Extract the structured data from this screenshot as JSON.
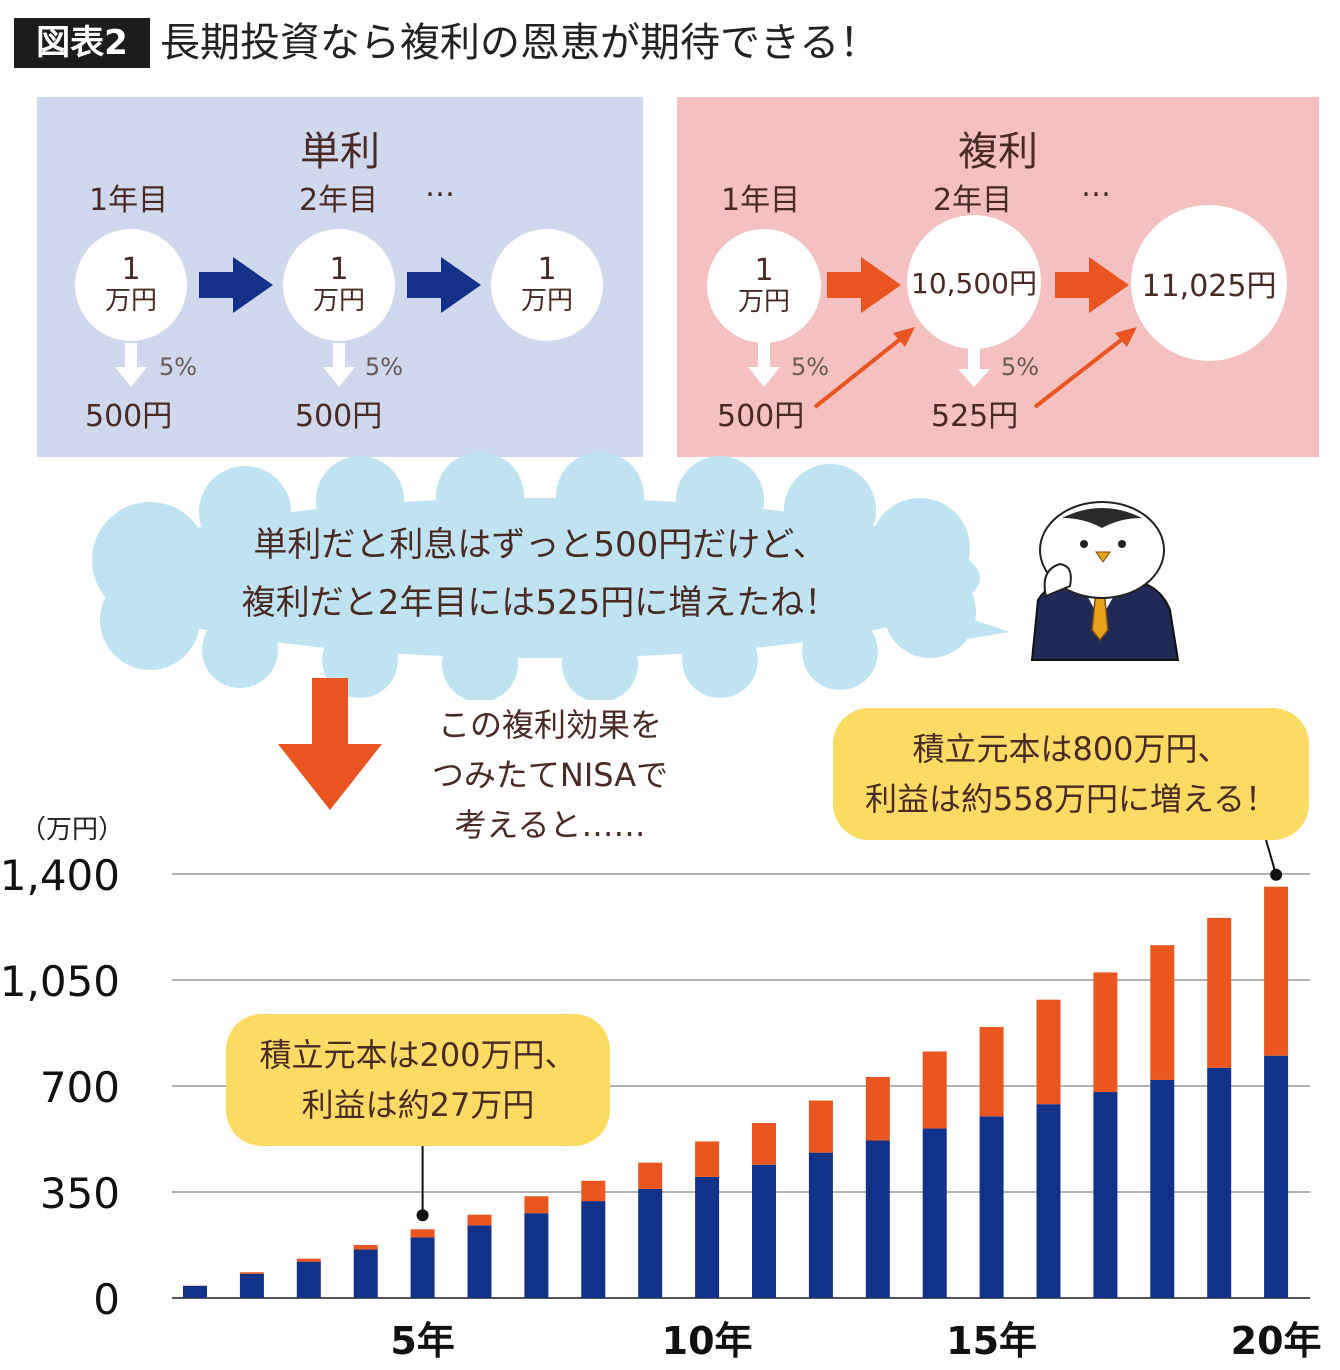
{
  "title": {
    "tag": "図表2",
    "text": "長期投資なら複利の恩恵が期待できる！"
  },
  "simple_panel": {
    "heading": "単利",
    "year1": "1年目",
    "year2": "2年目",
    "ellipsis": "…",
    "circle_num": "1",
    "circle_unit": "万円",
    "rate": "5%",
    "interest": "500円"
  },
  "compound_panel": {
    "heading": "複利",
    "year1": "1年目",
    "year2": "2年目",
    "ellipsis": "…",
    "circle1_num": "1",
    "circle1_unit": "万円",
    "circle2": "10,500円",
    "circle3": "11,025円",
    "rate": "5%",
    "interest1": "500円",
    "interest2": "525円"
  },
  "bubble": {
    "line1": "単利だと利息はずっと500円だけど、",
    "line2": "複利だと2年目には525円に増えたね！"
  },
  "note": {
    "line1": "この複利効果を",
    "line2": "つみたてNISAで",
    "line3": "考えると……"
  },
  "colors": {
    "principal": "#12328a",
    "profit": "#e9561f",
    "simple_arrow": "#14318a",
    "compound_arrow": "#e95420",
    "callout": "#fbdb63",
    "bubble": "#bfe3f0"
  },
  "chart_data": {
    "type": "bar",
    "stacked": true,
    "unit_label": "（万円）",
    "yticks": [
      "0",
      "350",
      "700",
      "1,050",
      "1,400"
    ],
    "ylim": [
      0,
      1400
    ],
    "x_labels": {
      "5": "5年",
      "10": "10年",
      "15": "15年",
      "20": "20年"
    },
    "grid": true,
    "x": [
      1,
      2,
      3,
      4,
      5,
      6,
      7,
      8,
      9,
      10,
      11,
      12,
      13,
      14,
      15,
      16,
      17,
      18,
      19,
      20
    ],
    "series": [
      {
        "values": [
          40,
          80,
          120,
          160,
          200,
          240,
          280,
          320,
          360,
          400,
          440,
          480,
          520,
          560,
          600,
          640,
          680,
          720,
          760,
          800
        ]
      },
      {
        "values": [
          1,
          5,
          10,
          15,
          27,
          35,
          56,
          67,
          87,
          117,
          138,
          172,
          210,
          254,
          295,
          345,
          395,
          445,
          495,
          558
        ]
      }
    ],
    "annotations": [
      {
        "x": 20,
        "line1": "積立元本は800万円、",
        "line2": "利益は約558万円に増える！"
      },
      {
        "x": 5,
        "line1": "積立元本は200万円、",
        "line2": "利益は約27万円"
      }
    ]
  }
}
